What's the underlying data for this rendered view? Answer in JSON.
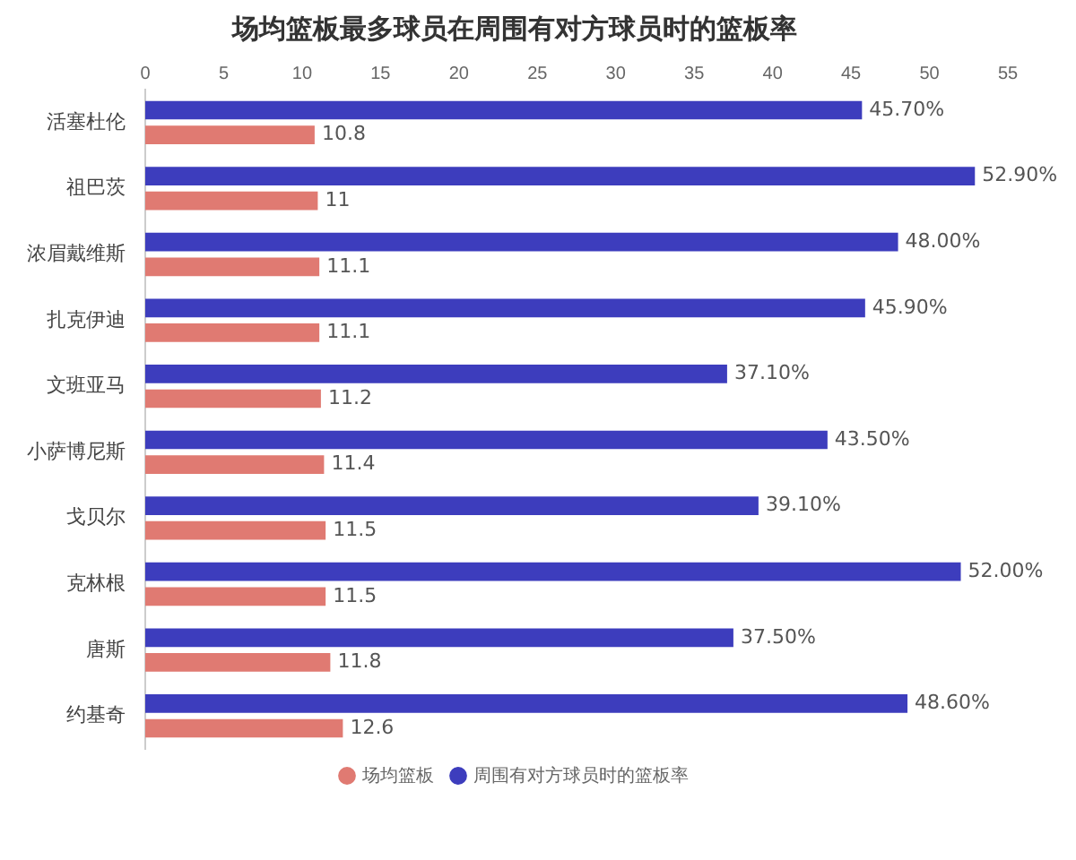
{
  "chart_data": {
    "type": "bar",
    "orientation": "horizontal",
    "title": "场均篮板最多球员在周围有对方球员时的篮板率",
    "categories": [
      "活塞杜伦",
      "祖巴茨",
      "浓眉戴维斯",
      "扎克伊迪",
      "文班亚马",
      "小萨博尼斯",
      "戈贝尔",
      "克林根",
      "唐斯",
      "约基奇"
    ],
    "series": [
      {
        "name": "周围有对方球员时的篮板率",
        "color": "#3d3dbd",
        "values": [
          45.7,
          52.9,
          48.0,
          45.9,
          37.1,
          43.5,
          39.1,
          52.0,
          37.5,
          48.6
        ],
        "value_labels": [
          "45.70%",
          "52.90%",
          "48.00%",
          "45.90%",
          "37.10%",
          "43.50%",
          "39.10%",
          "52.00%",
          "37.50%",
          "48.60%"
        ]
      },
      {
        "name": "场均篮板",
        "color": "#e07a72",
        "values": [
          10.8,
          11,
          11.1,
          11.1,
          11.2,
          11.4,
          11.5,
          11.5,
          11.8,
          12.6
        ],
        "value_labels": [
          "10.8",
          "11",
          "11.1",
          "11.1",
          "11.2",
          "11.4",
          "11.5",
          "11.5",
          "11.8",
          "12.6"
        ]
      }
    ],
    "xlim": [
      0,
      55
    ],
    "xticks": [
      0,
      5,
      10,
      15,
      20,
      25,
      30,
      35,
      40,
      45,
      50,
      55
    ],
    "grid": false,
    "legend": "bottom"
  }
}
